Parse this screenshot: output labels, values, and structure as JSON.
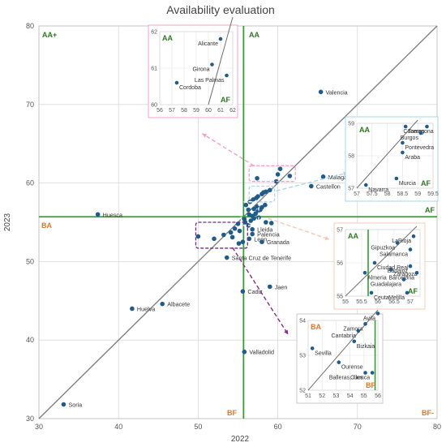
{
  "chart_data": {
    "type": "scatter",
    "title": "Availability evaluation",
    "xlabel": "2022",
    "ylabel": "2023",
    "xlim": [
      30,
      80
    ],
    "ylim": [
      30,
      80
    ],
    "xticks": [
      30,
      40,
      50,
      60,
      70,
      80
    ],
    "yticks": [
      30,
      40,
      50,
      60,
      70,
      80
    ],
    "grid": true,
    "reference_lines": {
      "diagonal": "y = x",
      "vertical_x": 55.7,
      "horizontal_y": 55.7
    },
    "quadrant_labels": [
      "AA+",
      "AA",
      "AF",
      "BA",
      "BF",
      "BF-"
    ],
    "labeled_points": [
      {
        "label": "Valencia",
        "x": 65.4,
        "y": 71.6
      },
      {
        "label": "Huesca",
        "x": 37.4,
        "y": 56.0
      },
      {
        "label": "Malaga",
        "x": 65.7,
        "y": 60.8
      },
      {
        "label": "Castellon",
        "x": 64.2,
        "y": 59.6
      },
      {
        "label": "Lleida",
        "x": 56.8,
        "y": 54.1
      },
      {
        "label": "Palencia",
        "x": 56.8,
        "y": 53.5
      },
      {
        "label": "Leon",
        "x": 56.4,
        "y": 52.9
      },
      {
        "label": "Granada",
        "x": 58.0,
        "y": 52.5
      },
      {
        "label": "Santa Cruz de Tenerife",
        "x": 53.6,
        "y": 50.5
      },
      {
        "label": "Cadiz",
        "x": 55.6,
        "y": 46.2
      },
      {
        "label": "Jaen",
        "x": 59.0,
        "y": 46.8
      },
      {
        "label": "Albacete",
        "x": 45.5,
        "y": 44.6
      },
      {
        "label": "Huelva",
        "x": 41.7,
        "y": 44.0
      },
      {
        "label": "Valladolid",
        "x": 55.8,
        "y": 38.5
      },
      {
        "label": "Soria",
        "x": 33.1,
        "y": 31.8
      }
    ],
    "unlabeled_points": [
      [
        56.0,
        57.2
      ],
      [
        56.5,
        57.6
      ],
      [
        56.9,
        57.9
      ],
      [
        57.3,
        58.1
      ],
      [
        57.5,
        58.3
      ],
      [
        58.0,
        58.6
      ],
      [
        58.5,
        58.9
      ],
      [
        59.0,
        59.1
      ],
      [
        58.2,
        58.8
      ],
      [
        57.0,
        55.5
      ],
      [
        56.6,
        55.2
      ],
      [
        56.8,
        55.8
      ],
      [
        57.2,
        56.1
      ],
      [
        57.5,
        56.4
      ],
      [
        57.8,
        56.6
      ],
      [
        58.0,
        56.9
      ],
      [
        57.6,
        55.6
      ],
      [
        56.4,
        56.0
      ],
      [
        58.4,
        57.2
      ],
      [
        55.9,
        55.0
      ],
      [
        56.3,
        54.6
      ],
      [
        55.0,
        54.8
      ],
      [
        58.5,
        55.0
      ],
      [
        59.2,
        54.9
      ],
      [
        55.8,
        55.4
      ],
      [
        57.0,
        56.7
      ],
      [
        56.3,
        56.6
      ],
      [
        57.4,
        57.0
      ],
      [
        50.0,
        53.2
      ],
      [
        52.0,
        52.9
      ],
      [
        53.2,
        53.4
      ],
      [
        54.1,
        53.7
      ],
      [
        54.3,
        53.1
      ],
      [
        55.1,
        52.3
      ],
      [
        55.6,
        52.5
      ],
      [
        54.6,
        54.2
      ],
      [
        55.2,
        53.9
      ],
      [
        57.4,
        60.6
      ],
      [
        60.0,
        61.1
      ],
      [
        60.3,
        61.8
      ],
      [
        61.5,
        60.9
      ],
      [
        59.8,
        60.2
      ]
    ],
    "insets": [
      {
        "id": "top",
        "quadrants": [
          "AA",
          "AF"
        ],
        "xlim": [
          56,
          62
        ],
        "ylim": [
          60,
          62
        ],
        "xticks": [
          56,
          57,
          58,
          59,
          60,
          61,
          62
        ],
        "yticks": [
          60,
          61,
          62
        ],
        "points": [
          {
            "label": "Alicante",
            "x": 61.0,
            "y": 61.8
          },
          {
            "label": "Girona",
            "x": 60.3,
            "y": 61.1
          },
          {
            "label": "Las Palmas",
            "x": 61.5,
            "y": 60.8
          },
          {
            "label": "Cordoba",
            "x": 57.4,
            "y": 60.6
          }
        ]
      },
      {
        "id": "right-top",
        "quadrants": [
          "AA",
          "AF"
        ],
        "xlim": [
          57,
          59.5
        ],
        "ylim": [
          57,
          59
        ],
        "xticks": [
          57,
          57.5,
          58,
          58.5,
          59,
          59.5
        ],
        "yticks": [
          57,
          58,
          59
        ],
        "points": [
          {
            "label": "Tarragona",
            "x": 58.6,
            "y": 58.9
          },
          {
            "label": "Caceres",
            "x": 59.3,
            "y": 58.9
          },
          {
            "label": "Burgos",
            "x": 59.1,
            "y": 58.7
          },
          {
            "label": "Pontevedra",
            "x": 58.5,
            "y": 58.4
          },
          {
            "label": "Araba",
            "x": 58.5,
            "y": 58.1
          },
          {
            "label": "Murcia",
            "x": 58.3,
            "y": 57.3
          },
          {
            "label": "Navarra",
            "x": 57.3,
            "y": 57.1
          }
        ]
      },
      {
        "id": "right-mid",
        "quadrants": [
          "AA",
          "AF"
        ],
        "xlim": [
          55,
          57.3
        ],
        "ylim": [
          55,
          57
        ],
        "xticks": [
          55,
          55.5,
          56,
          56.5,
          57
        ],
        "yticks": [
          55,
          56,
          57
        ],
        "points": [
          {
            "label": "LaRioja",
            "x": 57.1,
            "y": 56.8
          },
          {
            "label": "Gipuzkoa",
            "x": 56.6,
            "y": 56.6
          },
          {
            "label": "Salamanca",
            "x": 57.0,
            "y": 56.4
          },
          {
            "label": "Badajoz",
            "x": 57.0,
            "y": 55.9
          },
          {
            "label": "Ciudad Real",
            "x": 55.9,
            "y": 56.0
          },
          {
            "label": "Zaragoza",
            "x": 56.4,
            "y": 55.8
          },
          {
            "label": "Almeria",
            "x": 55.6,
            "y": 55.7
          },
          {
            "label": "Barcelona",
            "x": 57.2,
            "y": 55.7
          },
          {
            "label": "Guadalajara",
            "x": 56.8,
            "y": 55.5
          },
          {
            "label": "Ceuta",
            "x": 55.8,
            "y": 55.1
          },
          {
            "label": "Melilla",
            "x": 56.9,
            "y": 55.1
          }
        ]
      },
      {
        "id": "bottom",
        "quadrants": [
          "BA",
          "BF"
        ],
        "xlim": [
          51,
          56
        ],
        "ylim": [
          52,
          54
        ],
        "xticks": [
          51,
          52,
          53,
          54,
          55,
          56
        ],
        "yticks": [
          52,
          53,
          54
        ],
        "points": [
          {
            "label": "Avila",
            "x": 56.0,
            "y": 54.2
          },
          {
            "label": "Cantabria",
            "x": 54.6,
            "y": 53.7
          },
          {
            "label": "Zamora",
            "x": 55.1,
            "y": 53.9
          },
          {
            "label": "Bizkaia",
            "x": 54.3,
            "y": 53.4
          },
          {
            "label": "Sevilla",
            "x": 51.3,
            "y": 53.2
          },
          {
            "label": "Ourense",
            "x": 53.2,
            "y": 52.8
          },
          {
            "label": "Cuenca",
            "x": 55.6,
            "y": 52.5
          },
          {
            "label": "Balleras, Illes",
            "x": 55.1,
            "y": 52.5
          }
        ]
      }
    ]
  }
}
